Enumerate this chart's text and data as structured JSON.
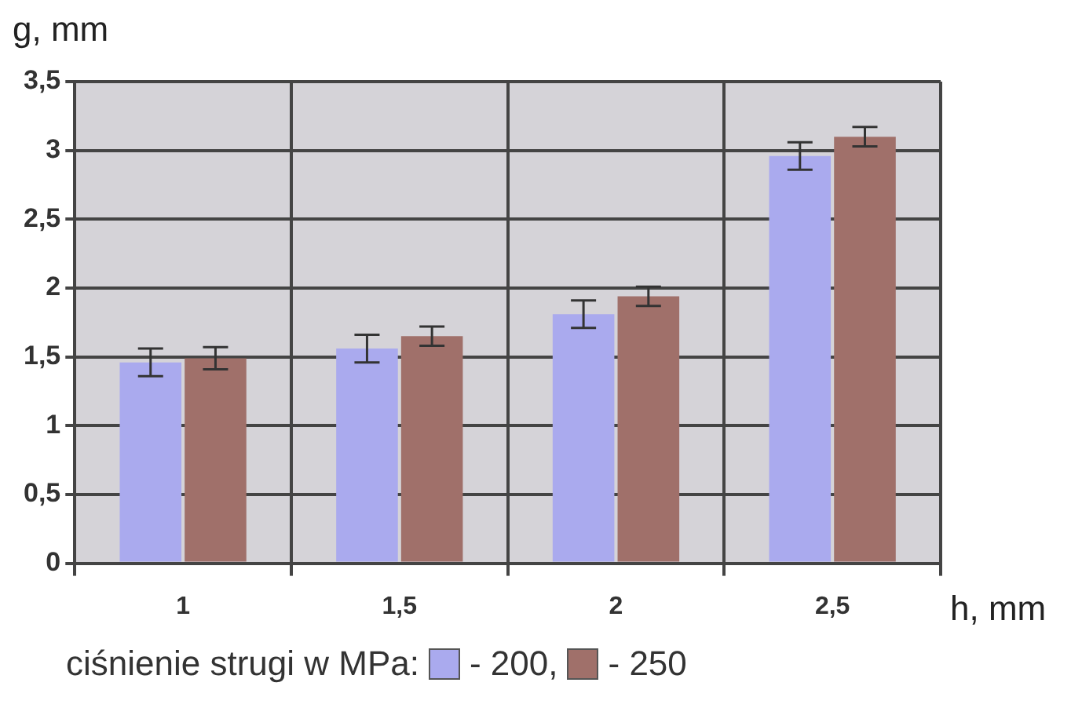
{
  "chart_data": {
    "type": "bar",
    "xlabel": "h, mm",
    "ylabel": "g, mm",
    "legend_title": "ciśnienie strugi w MPa:",
    "categories": [
      "1",
      "1,5",
      "2",
      "2,5"
    ],
    "series": [
      {
        "name": "- 200,",
        "color": "#aaaaee",
        "values": [
          1.46,
          1.56,
          1.81,
          2.96
        ],
        "errors": [
          0.1,
          0.1,
          0.1,
          0.1
        ]
      },
      {
        "name": "- 250",
        "color": "#a0706a",
        "values": [
          1.49,
          1.65,
          1.94,
          3.1
        ],
        "errors": [
          0.08,
          0.07,
          0.07,
          0.07
        ]
      }
    ],
    "ylim": [
      0,
      3.5
    ],
    "yticks": [
      0,
      {
        "value": 0.5,
        "label": "0,5"
      },
      1,
      {
        "value": 1.5,
        "label": "1,5"
      },
      2,
      {
        "value": 2.5,
        "label": "2,5"
      },
      3,
      {
        "value": 3.5,
        "label": "3,5"
      }
    ],
    "grid": true,
    "legend": "bottom"
  }
}
